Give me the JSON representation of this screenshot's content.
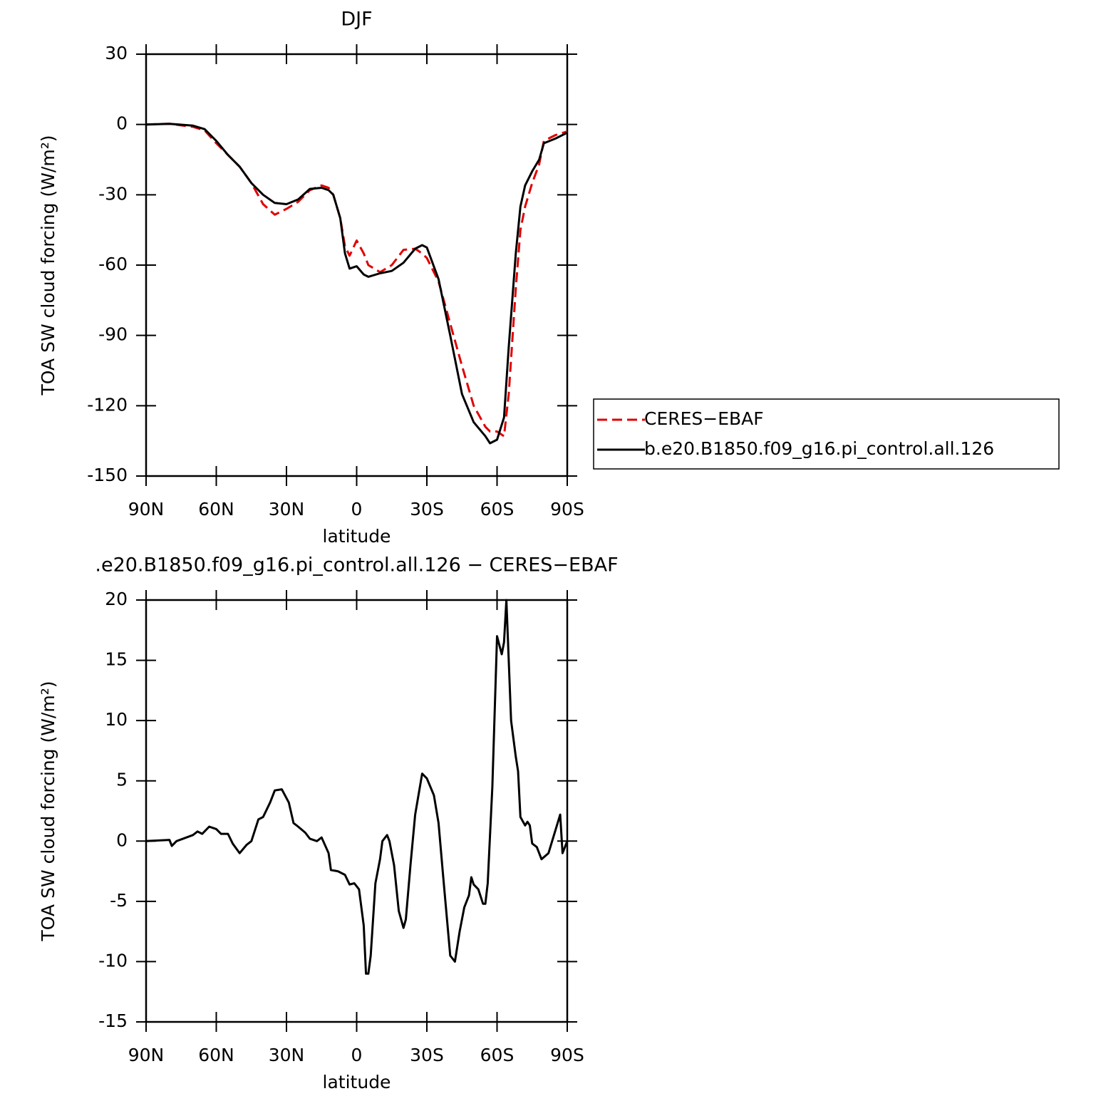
{
  "chart_data": [
    {
      "type": "line",
      "title": "DJF",
      "xlabel": "latitude",
      "ylabel": "TOA SW cloud forcing (W/m²)",
      "xlim": [
        90,
        -90
      ],
      "xticks": [
        {
          "value": 90,
          "label": "90N"
        },
        {
          "value": 60,
          "label": "60N"
        },
        {
          "value": 30,
          "label": "30N"
        },
        0,
        {
          "value": -30,
          "label": "30S"
        },
        {
          "value": -60,
          "label": "60S"
        },
        {
          "value": -90,
          "label": "90S"
        }
      ],
      "ylim": [
        -150,
        30
      ],
      "yticks": [
        -150,
        -120,
        -90,
        -60,
        -30,
        0,
        30
      ],
      "x": [
        90,
        80,
        70,
        65,
        60,
        55,
        50,
        45,
        40,
        35,
        30,
        25,
        20,
        15,
        12,
        10,
        7,
        5,
        3,
        0,
        -3,
        -5,
        -10,
        -15,
        -20,
        -25,
        -28,
        -30,
        -35,
        -40,
        -45,
        -50,
        -55,
        -57,
        -60,
        -63,
        -65,
        -68,
        -70,
        -72,
        -75,
        -78,
        -80,
        -85,
        -90
      ],
      "series": [
        {
          "name": "CERES−EBAF",
          "color": "#e00000",
          "dash": true,
          "values": [
            0,
            0.3,
            -1,
            -2.5,
            -8,
            -13,
            -18,
            -25,
            -34,
            -38.5,
            -36,
            -33,
            -28,
            -26,
            -27,
            -30,
            -40,
            -52,
            -56,
            -49.5,
            -55,
            -60,
            -63,
            -60,
            -53.5,
            -53,
            -55,
            -57,
            -67,
            -85,
            -103,
            -120,
            -129,
            -131,
            -131,
            -133,
            -115,
            -70,
            -45,
            -35,
            -25,
            -17,
            -7,
            -4.5,
            -3
          ]
        },
        {
          "name": "b.e20.B1850.f09_g16.pi_control.all.126",
          "color": "#000000",
          "dash": false,
          "values": [
            0,
            0.3,
            -0.5,
            -2,
            -7,
            -13,
            -18,
            -25,
            -30,
            -33.5,
            -34,
            -32,
            -27.5,
            -27,
            -28,
            -30,
            -40,
            -55,
            -61.5,
            -60.5,
            -64,
            -65,
            -63.5,
            -62.5,
            -59,
            -53,
            -51.5,
            -52.5,
            -66,
            -90,
            -115,
            -127,
            -133,
            -136,
            -134.5,
            -125,
            -95,
            -55,
            -35,
            -26,
            -20,
            -15,
            -8,
            -6,
            -3.5
          ]
        }
      ]
    },
    {
      "type": "line",
      "title": ".e20.B1850.f09_g16.pi_control.all.126 − CERES−EBAF",
      "xlabel": "latitude",
      "ylabel": "TOA SW cloud forcing (W/m²)",
      "xlim": [
        90,
        -90
      ],
      "xticks": [
        {
          "value": 90,
          "label": "90N"
        },
        {
          "value": 60,
          "label": "60N"
        },
        {
          "value": 30,
          "label": "30N"
        },
        0,
        {
          "value": -30,
          "label": "30S"
        },
        {
          "value": -60,
          "label": "60S"
        },
        {
          "value": -90,
          "label": "90S"
        }
      ],
      "ylim": [
        -15,
        20
      ],
      "yticks": [
        -15,
        -10,
        -5,
        0,
        5,
        10,
        15,
        20
      ],
      "x": [
        90,
        80,
        79,
        77,
        70,
        68,
        66,
        63,
        60,
        58,
        55,
        53,
        50,
        47,
        45,
        42,
        40,
        37,
        35,
        32,
        29,
        27,
        25,
        22,
        20,
        17,
        15,
        12,
        11,
        8,
        5,
        3,
        1,
        -1,
        -3,
        -4,
        -5,
        -6,
        -8,
        -10,
        -11,
        -13,
        -14,
        -16,
        -18,
        -20,
        -21,
        -23,
        -25,
        -28,
        -30,
        -33,
        -35,
        -37,
        -40,
        -42,
        -44,
        -46,
        -48,
        -49,
        -50,
        -52,
        -54,
        -55,
        -56,
        -58,
        -60,
        -62,
        -63,
        -64,
        -66,
        -68,
        -69,
        -70,
        -72,
        -73,
        -74,
        -75,
        -77,
        -79,
        -82,
        -87,
        -88,
        -90
      ],
      "series": [
        {
          "color": "#000000",
          "dash": false,
          "values": [
            0,
            0.1,
            -0.4,
            0,
            0.5,
            0.8,
            0.6,
            1.2,
            1,
            0.6,
            0.6,
            -0.2,
            -1,
            -0.3,
            0,
            1.8,
            2,
            3.2,
            4.2,
            4.3,
            3.2,
            1.5,
            1.2,
            0.7,
            0.2,
            0,
            0.3,
            -1,
            -2.4,
            -2.5,
            -2.8,
            -3.6,
            -3.5,
            -4,
            -7,
            -11,
            -11,
            -9.5,
            -3.5,
            -1.5,
            0,
            0.5,
            0,
            -2,
            -5.8,
            -7.2,
            -6.5,
            -2,
            2.2,
            5.6,
            5.2,
            3.8,
            1.5,
            -3,
            -9.5,
            -10,
            -7.5,
            -5.5,
            -4.5,
            -3,
            -3.6,
            -4,
            -5.2,
            -5.2,
            -3.5,
            4.5,
            17,
            15.5,
            16.5,
            20,
            10,
            7,
            5.8,
            2,
            1.3,
            1.6,
            1.3,
            -0.2,
            -0.5,
            -1.5,
            -1,
            2.2,
            -1,
            0
          ]
        }
      ]
    }
  ]
}
